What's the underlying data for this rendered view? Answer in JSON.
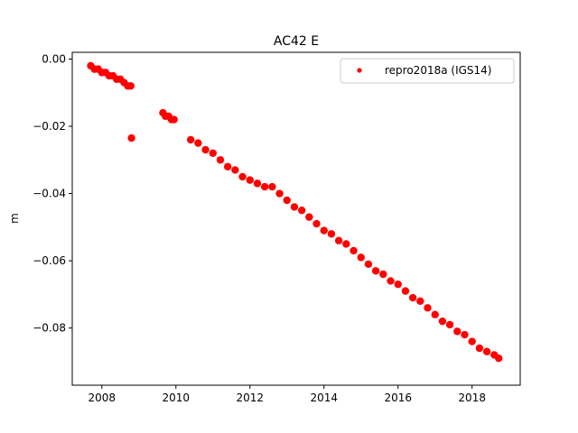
{
  "chart_data": {
    "type": "scatter",
    "title": "AC42 E",
    "xlabel": "",
    "ylabel": "m",
    "xlim": [
      2007.2,
      2019.3
    ],
    "ylim": [
      -0.097,
      0.002
    ],
    "xticks": [
      2008,
      2010,
      2012,
      2014,
      2016,
      2018
    ],
    "xtick_labels": [
      "2008",
      "2010",
      "2012",
      "2014",
      "2016",
      "2018"
    ],
    "yticks": [
      0.0,
      -0.02,
      -0.04,
      -0.06,
      -0.08
    ],
    "ytick_labels": [
      "0.00",
      "−0.02",
      "−0.04",
      "−0.06",
      "−0.08"
    ],
    "grid": false,
    "legend_position": "top-right",
    "series": [
      {
        "name": "repro2018a (IGS14)",
        "color": "#ff0000",
        "marker": "point",
        "x": [
          2007.7,
          2007.8,
          2007.9,
          2008.0,
          2008.1,
          2008.2,
          2008.3,
          2008.4,
          2008.5,
          2008.6,
          2008.7,
          2008.78,
          2009.65,
          2009.72,
          2009.8,
          2009.88,
          2009.95,
          2010.4,
          2010.6,
          2010.8,
          2011.0,
          2011.2,
          2011.4,
          2011.6,
          2011.8,
          2012.0,
          2012.2,
          2012.4,
          2012.6,
          2012.8,
          2013.0,
          2013.2,
          2013.4,
          2013.6,
          2013.8,
          2014.0,
          2014.2,
          2014.4,
          2014.6,
          2014.8,
          2015.0,
          2015.2,
          2015.4,
          2015.6,
          2015.8,
          2016.0,
          2016.2,
          2016.4,
          2016.6,
          2016.8,
          2017.0,
          2017.2,
          2017.4,
          2017.6,
          2017.8,
          2018.0,
          2018.2,
          2018.4,
          2018.6,
          2018.72,
          2008.8
        ],
        "y": [
          -0.002,
          -0.003,
          -0.003,
          -0.004,
          -0.004,
          -0.005,
          -0.005,
          -0.006,
          -0.006,
          -0.007,
          -0.008,
          -0.008,
          -0.016,
          -0.017,
          -0.017,
          -0.018,
          -0.018,
          -0.024,
          -0.025,
          -0.027,
          -0.028,
          -0.03,
          -0.032,
          -0.033,
          -0.035,
          -0.036,
          -0.037,
          -0.038,
          -0.038,
          -0.04,
          -0.042,
          -0.044,
          -0.045,
          -0.047,
          -0.049,
          -0.051,
          -0.052,
          -0.054,
          -0.055,
          -0.057,
          -0.059,
          -0.061,
          -0.063,
          -0.064,
          -0.066,
          -0.067,
          -0.069,
          -0.071,
          -0.072,
          -0.074,
          -0.076,
          -0.078,
          -0.079,
          -0.081,
          -0.082,
          -0.084,
          -0.086,
          -0.087,
          -0.088,
          -0.089,
          -0.0235
        ]
      }
    ]
  }
}
